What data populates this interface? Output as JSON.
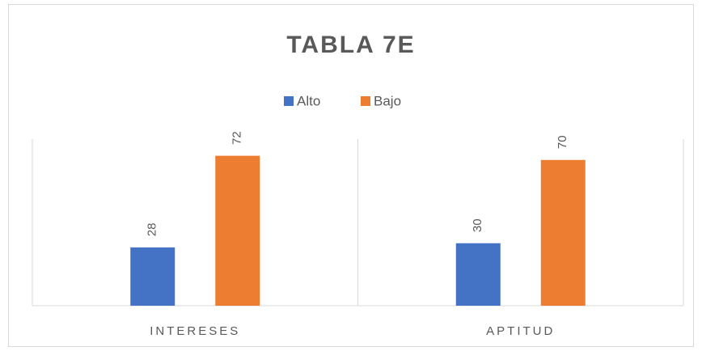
{
  "chart_data": {
    "type": "bar",
    "title": "TABLA 7E",
    "categories": [
      "INTERESES",
      "APTITUD"
    ],
    "series": [
      {
        "name": "Alto",
        "color": "#4472c4",
        "values": [
          28,
          30
        ]
      },
      {
        "name": "Bajo",
        "color": "#ed7d31",
        "values": [
          72,
          70
        ]
      }
    ],
    "ylim": [
      0,
      80
    ],
    "legend": "top"
  }
}
